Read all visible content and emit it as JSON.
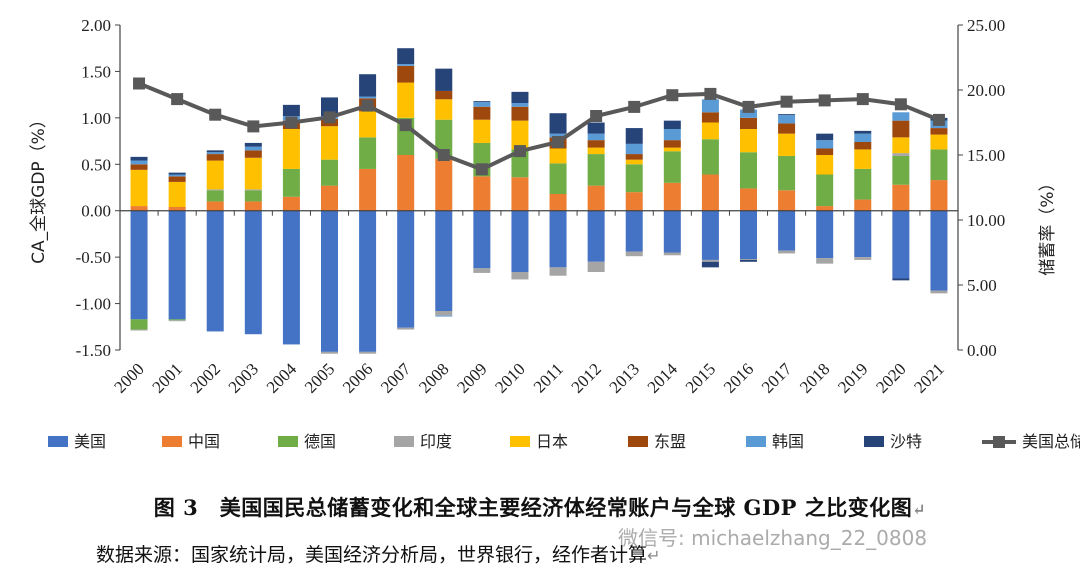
{
  "chart_data": {
    "type": "bar",
    "stacked": true,
    "categories": [
      "2000",
      "2001",
      "2002",
      "2003",
      "2004",
      "2005",
      "2006",
      "2007",
      "2008",
      "2009",
      "2010",
      "2011",
      "2012",
      "2013",
      "2014",
      "2015",
      "2016",
      "2017",
      "2018",
      "2019",
      "2020",
      "2021"
    ],
    "ylabel": "CA_全球GDP（%）",
    "ylabel_right": "储蓄率（%）",
    "ylim": [
      -1.5,
      2.0
    ],
    "ylim_right": [
      0,
      25
    ],
    "yticks": [
      "2.00",
      "1.50",
      "1.00",
      "0.50",
      "0.00",
      "-0.50",
      "-1.00",
      "-1.50"
    ],
    "yticks_right": [
      "25.00",
      "20.00",
      "15.00",
      "10.00",
      "5.00",
      "0.00"
    ],
    "grid": false,
    "legend_position": "bottom",
    "series": [
      {
        "name": "美国",
        "color": "#4472C4",
        "values": [
          -1.17,
          -1.17,
          -1.3,
          -1.33,
          -1.44,
          -1.52,
          -1.52,
          -1.26,
          -1.08,
          -0.62,
          -0.66,
          -0.61,
          -0.55,
          -0.44,
          -0.45,
          -0.53,
          -0.52,
          -0.43,
          -0.51,
          -0.5,
          -0.73,
          -0.86
        ]
      },
      {
        "name": "中国",
        "color": "#ED7D31",
        "values": [
          0.05,
          0.04,
          0.1,
          0.1,
          0.15,
          0.27,
          0.45,
          0.6,
          0.56,
          0.37,
          0.36,
          0.18,
          0.27,
          0.2,
          0.3,
          0.39,
          0.24,
          0.22,
          0.05,
          0.12,
          0.28,
          0.33
        ]
      },
      {
        "name": "德国",
        "color": "#70AD47",
        "values": [
          -0.11,
          -0.01,
          0.12,
          0.12,
          0.3,
          0.28,
          0.34,
          0.4,
          0.42,
          0.36,
          0.3,
          0.33,
          0.34,
          0.3,
          0.34,
          0.38,
          0.39,
          0.37,
          0.34,
          0.33,
          0.31,
          0.33
        ]
      },
      {
        "name": "印度",
        "color": "#A5A5A5",
        "values": [
          -0.01,
          -0.01,
          0.01,
          0.01,
          0.0,
          -0.02,
          -0.02,
          -0.02,
          -0.05,
          -0.05,
          -0.08,
          -0.09,
          -0.11,
          -0.05,
          -0.03,
          -0.02,
          -0.01,
          -0.03,
          -0.06,
          -0.03,
          0.03,
          -0.03
        ]
      },
      {
        "name": "日本",
        "color": "#FFC000",
        "values": [
          0.39,
          0.27,
          0.31,
          0.34,
          0.43,
          0.36,
          0.28,
          0.38,
          0.22,
          0.25,
          0.31,
          0.16,
          0.07,
          0.05,
          0.04,
          0.18,
          0.25,
          0.24,
          0.21,
          0.21,
          0.17,
          0.16
        ]
      },
      {
        "name": "东盟",
        "color": "#9E480E",
        "values": [
          0.06,
          0.06,
          0.07,
          0.08,
          0.09,
          0.08,
          0.14,
          0.18,
          0.09,
          0.14,
          0.15,
          0.12,
          0.08,
          0.06,
          0.08,
          0.11,
          0.12,
          0.11,
          0.07,
          0.08,
          0.18,
          0.07
        ]
      },
      {
        "name": "韩国",
        "color": "#5B9BD5",
        "values": [
          0.04,
          0.02,
          0.02,
          0.04,
          0.05,
          0.03,
          0.02,
          0.02,
          -0.01,
          0.05,
          0.04,
          0.04,
          0.07,
          0.11,
          0.12,
          0.14,
          0.09,
          0.09,
          0.09,
          0.09,
          0.09,
          0.08
        ]
      },
      {
        "name": "沙特",
        "color": "#264478",
        "values": [
          0.04,
          0.02,
          0.02,
          0.04,
          0.12,
          0.2,
          0.24,
          0.17,
          0.24,
          0.01,
          0.12,
          0.22,
          0.12,
          0.17,
          0.09,
          -0.06,
          -0.02,
          0.01,
          0.07,
          0.03,
          -0.02,
          0.03
        ]
      }
    ],
    "line_series": {
      "name": "美国总储蓄率",
      "color": "#595959",
      "axis": "right",
      "values": [
        20.5,
        19.3,
        18.1,
        17.2,
        17.5,
        17.9,
        18.8,
        17.3,
        15.0,
        13.9,
        15.3,
        16.0,
        18.0,
        18.7,
        19.6,
        19.7,
        18.7,
        19.1,
        19.2,
        19.3,
        18.9,
        17.7
      ]
    }
  },
  "caption": {
    "title": "图 3　美国国民总储蓄变化和全球主要经济体经常账户与全球 GDP 之比变化图",
    "source": "数据来源：国家统计局，美国经济分析局，世界银行，经作者计算",
    "watermark": "微信号: michaelzhang_22_0808"
  }
}
